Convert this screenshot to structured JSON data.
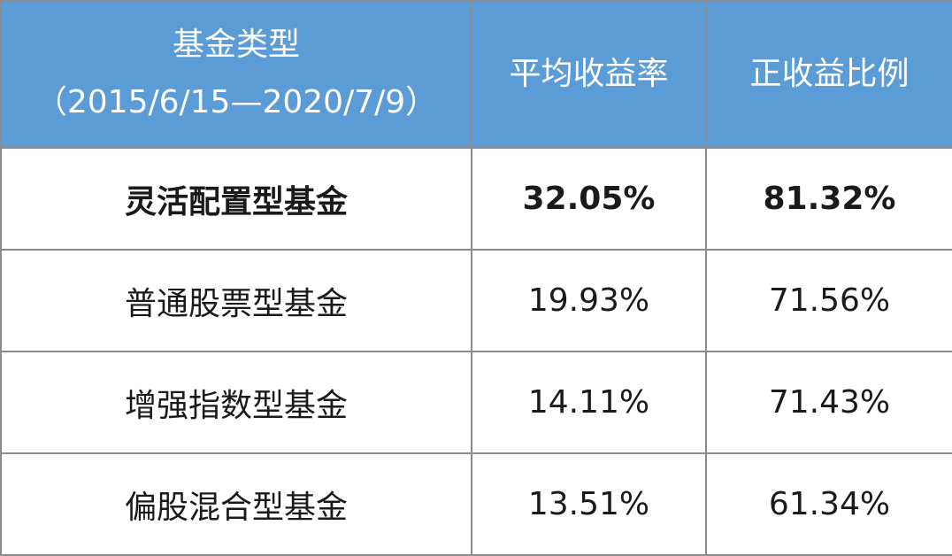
{
  "table": {
    "header": [
      [
        "基金类型",
        "（2015/6/15—2020/7/9）"
      ],
      [
        "平均收益率"
      ],
      [
        "正收益比例"
      ]
    ],
    "rows": [
      [
        "灵活配置型基金",
        "32.05%",
        "81.32%"
      ],
      [
        "普通股票型基金",
        "19.93%",
        "71.56%"
      ],
      [
        "增强指数型基金",
        "14.11%",
        "71.43%"
      ],
      [
        "偏股混合型基金",
        "13.51%",
        "61.34%"
      ]
    ]
  }
}
